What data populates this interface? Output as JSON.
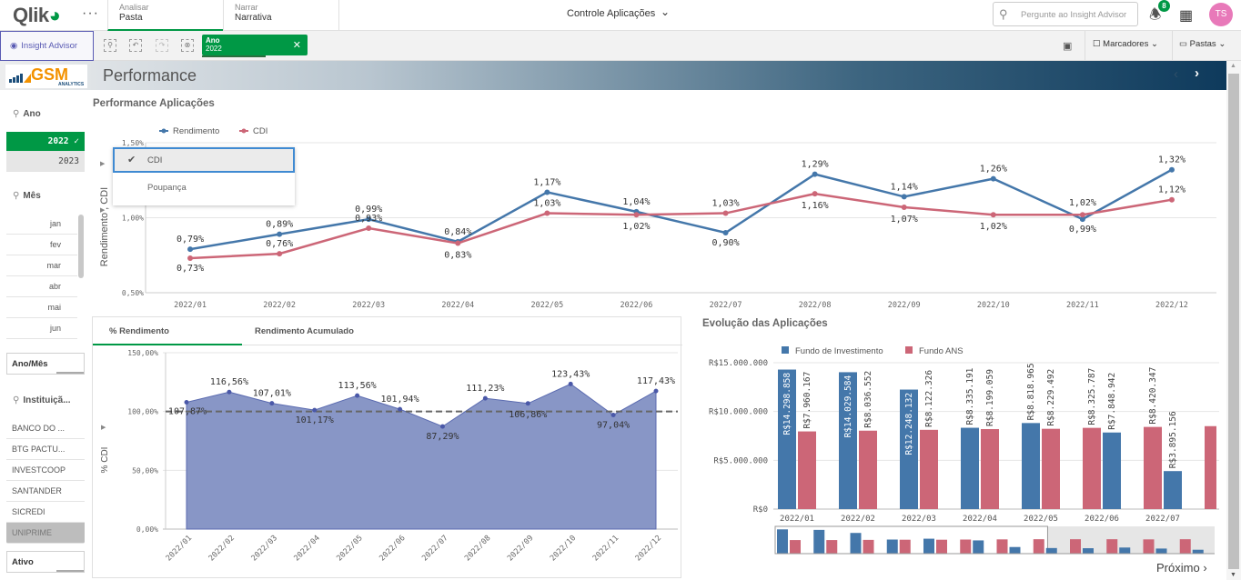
{
  "topbar": {
    "logo": "Qlik",
    "more_icon": "ellipsis-icon",
    "tabs": [
      {
        "small": "Analisar",
        "main": "Pasta"
      },
      {
        "small": "Narrar",
        "main": "Narrativa"
      }
    ],
    "app_title": "Controle Aplicações",
    "search_placeholder": "Pergunte ao Insight Advisor",
    "notification_count": "8",
    "avatar_initials": "TS"
  },
  "toolbar": {
    "insight_advisor": "Insight Advisor",
    "selection": {
      "field": "Ano",
      "value": "2022"
    },
    "bookmarks": "Marcadores",
    "sheets": "Pastas"
  },
  "sheet": {
    "brand": "GSM",
    "brand_sub": "ANALYTICS",
    "title": "Performance",
    "next_label": "Próximo"
  },
  "filters": {
    "ano": {
      "label": "Ano",
      "items": [
        {
          "value": "2022",
          "selected": true
        },
        {
          "value": "2023",
          "selected": false
        }
      ]
    },
    "mes": {
      "label": "Mês",
      "items": [
        "jan",
        "fev",
        "mar",
        "abr",
        "mai",
        "jun"
      ]
    },
    "ano_mes": {
      "label": "Ano/Mês"
    },
    "instituicao": {
      "label": "Instituiçã...",
      "items": [
        "BANCO DO ...",
        "BTG PACTU...",
        "INVESTCOOP",
        "SANTANDER",
        "SICREDI",
        "UNIPRIME"
      ]
    },
    "ativo": {
      "label": "Ativo"
    }
  },
  "dropdown": {
    "options": [
      "CDI",
      "Poupança"
    ],
    "selected": "CDI"
  },
  "tabs_panel": {
    "tabs": [
      "% Rendimento",
      "Rendimento Acumulado"
    ],
    "active": "% Rendimento"
  },
  "chart_data": [
    {
      "type": "line",
      "title": "Performance Aplicações",
      "x": [
        "2022/01",
        "2022/02",
        "2022/03",
        "2022/04",
        "2022/05",
        "2022/06",
        "2022/07",
        "2022/08",
        "2022/09",
        "2022/10",
        "2022/11",
        "2022/12"
      ],
      "series": [
        {
          "name": "Rendimento",
          "color": "#4477aa",
          "values": [
            0.79,
            0.89,
            0.99,
            0.84,
            1.17,
            1.04,
            0.9,
            1.29,
            1.14,
            1.26,
            0.99,
            1.32
          ],
          "labels": [
            "0,79%",
            "0,89%",
            "0,99%",
            "0,84%",
            "1,17%",
            "1,04%",
            "0,90%",
            "1,29%",
            "1,14%",
            "1,26%",
            "0,99%",
            "1,32%"
          ]
        },
        {
          "name": "CDI",
          "color": "#cc6677",
          "values": [
            0.73,
            0.76,
            0.93,
            0.83,
            1.03,
            1.02,
            1.03,
            1.16,
            1.07,
            1.02,
            1.02,
            1.12
          ],
          "labels": [
            "0,73%",
            "0,76%",
            "0,93%",
            "0,83%",
            "1,03%",
            "1,02%",
            "1,03%",
            "1,16%",
            "1,07%",
            "1,02%",
            "1,02%",
            "1,12%"
          ]
        }
      ],
      "ylabel": "Rendimento , CDI",
      "yticks": [
        "0,50%",
        "1,00%",
        "1,50%"
      ],
      "ylim": [
        0.5,
        1.5
      ],
      "legend": "top-left",
      "grid": true
    },
    {
      "type": "area",
      "title": "% Rendimento",
      "x": [
        "2022/01",
        "2022/02",
        "2022/03",
        "2022/04",
        "2022/05",
        "2022/06",
        "2022/07",
        "2022/08",
        "2022/09",
        "2022/10",
        "2022/11",
        "2022/12"
      ],
      "series": [
        {
          "name": "% CDI",
          "color": "#8896c6",
          "values": [
            107.87,
            116.56,
            107.01,
            101.17,
            113.56,
            101.94,
            87.29,
            111.23,
            106.86,
            123.43,
            97.04,
            117.43
          ],
          "labels": [
            "107,87%",
            "116,56%",
            "107,01%",
            "101,17%",
            "113,56%",
            "101,94%",
            "87,29%",
            "111,23%",
            "106,86%",
            "123,43%",
            "97,04%",
            "117,43%"
          ]
        }
      ],
      "reference_line": 100,
      "ylabel": "% CDI",
      "yticks": [
        "0,00%",
        "50,00%",
        "100,00%",
        "150,00%"
      ],
      "ylim": [
        0,
        150
      ],
      "grid": true
    },
    {
      "type": "bar",
      "title": "Evolução das Aplicações",
      "categories": [
        "2022/01",
        "2022/02",
        "2022/03",
        "2022/04",
        "2022/05",
        "2022/06",
        "2022/07"
      ],
      "series": [
        {
          "name": "Fundo de Investimento",
          "color": "#4477aa",
          "values": [
            14298858,
            14029584,
            12248132,
            8335191,
            8818965,
            7848942,
            3895156
          ],
          "labels": [
            "R$14.298.858",
            "R$14.029.584",
            "R$12.248.132",
            "R$8.335.191",
            "R$8.818.965",
            "R$7.848.942",
            "R$3.895.156"
          ]
        },
        {
          "name": "Fundo ANS",
          "color": "#cc6677",
          "values": [
            7960167,
            8036552,
            8122326,
            8199059,
            8229492,
            8325787,
            8420347
          ],
          "labels": [
            "R$7.960.167",
            "R$8.036.552",
            "R$8.122.326",
            "R$8.199.059",
            "R$8.229.492",
            "R$8.325.787",
            "R$8.420.347"
          ]
        }
      ],
      "bar_order": [
        [
          "inv",
          "ans"
        ],
        [
          "inv",
          "ans"
        ],
        [
          "inv",
          "ans"
        ],
        [
          "inv",
          "ans"
        ],
        [
          "inv",
          "ans"
        ],
        [
          "ans",
          "inv"
        ],
        [
          "ans",
          "inv"
        ]
      ],
      "partial_next_ans": true,
      "yticks": [
        "R$0",
        "R$5.000.000",
        "R$10.000.000",
        "R$15.000.000"
      ],
      "ylim": [
        0,
        15000000
      ],
      "legend": "top-left",
      "grid": true,
      "minimap": {
        "pairs": [
          [
            14.3,
            8.0
          ],
          [
            14.0,
            8.0
          ],
          [
            12.2,
            8.1
          ],
          [
            8.3,
            8.2
          ],
          [
            8.8,
            8.2
          ],
          [
            8.3,
            7.8
          ],
          [
            8.4,
            3.9
          ],
          [
            8.5,
            3.3
          ],
          [
            8.5,
            3.2
          ],
          [
            8.5,
            3.6
          ],
          [
            8.4,
            3.0
          ],
          [
            8.5,
            2.3
          ]
        ],
        "visible_fraction": 0.62
      }
    }
  ]
}
